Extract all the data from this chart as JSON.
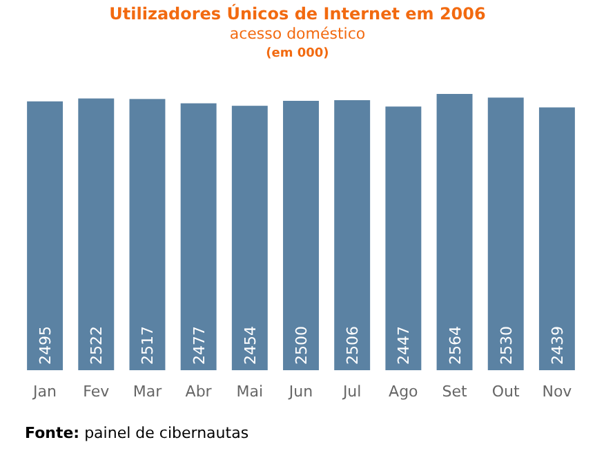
{
  "chart_data": {
    "type": "bar",
    "title": "Utilizadores Únicos de Internet em 2006",
    "subtitle": "acesso doméstico",
    "annotations": [
      "(em 000)",
      "Fonte: painel de cibernautas"
    ],
    "categories": [
      "Jan",
      "Fev",
      "Mar",
      "Abr",
      "Mai",
      "Jun",
      "Jul",
      "Ago",
      "Set",
      "Out",
      "Nov"
    ],
    "values": [
      2495,
      2522,
      2517,
      2477,
      2454,
      2500,
      2506,
      2447,
      2564,
      2530,
      2439
    ],
    "color": "#5b82a3",
    "data_labels": true
  }
}
